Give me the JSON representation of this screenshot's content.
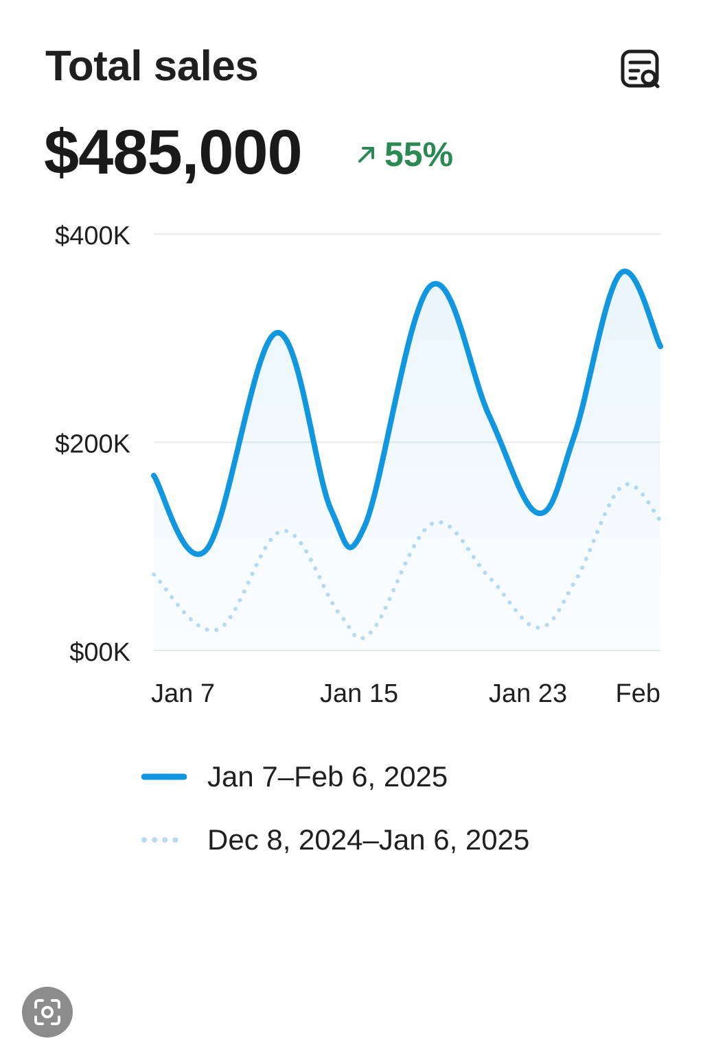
{
  "card": {
    "title": "Total sales",
    "total_value": "$485,000",
    "delta_text": "55%",
    "delta_direction": "up",
    "delta_color": "#2b8a53",
    "report_icon": "report-icon",
    "lens_icon": "lens-scan-icon"
  },
  "colors": {
    "current": "#1196e0",
    "previous": "#b9dcf2",
    "grid": "#e6e9ec"
  },
  "chart_data": {
    "type": "line",
    "x_ticks": [
      {
        "label": "Jan 7",
        "day": 0
      },
      {
        "label": "Jan 15",
        "day": 8
      },
      {
        "label": "Jan 23",
        "day": 16
      },
      {
        "label": "Feb",
        "day": 24
      }
    ],
    "y_ticks": [
      {
        "label": "$00K",
        "value": 0
      },
      {
        "label": "$200K",
        "value": 200000
      },
      {
        "label": "$400K",
        "value": 400000
      }
    ],
    "ylim": [
      0,
      410000
    ],
    "x_range": [
      0,
      24
    ],
    "grid": true,
    "legend": "bottom",
    "series": [
      {
        "name": "Jan 7–Feb 6, 2025",
        "style": "solid",
        "area_fill": true,
        "points": [
          {
            "x": 0,
            "y": 168000
          },
          {
            "x": 2.5,
            "y": 97000
          },
          {
            "x": 5.8,
            "y": 305000
          },
          {
            "x": 8.4,
            "y": 135000
          },
          {
            "x": 10.0,
            "y": 120000
          },
          {
            "x": 13.1,
            "y": 350000
          },
          {
            "x": 15.9,
            "y": 225000
          },
          {
            "x": 18.2,
            "y": 132000
          },
          {
            "x": 19.9,
            "y": 205000
          },
          {
            "x": 22.1,
            "y": 362000
          },
          {
            "x": 24,
            "y": 292000
          }
        ]
      },
      {
        "name": "Dec 8, 2024–Jan 6, 2025",
        "style": "dotted",
        "area_fill": false,
        "points": [
          {
            "x": 0,
            "y": 73000
          },
          {
            "x": 3.0,
            "y": 20000
          },
          {
            "x": 6.1,
            "y": 115000
          },
          {
            "x": 8.8,
            "y": 35000
          },
          {
            "x": 10.3,
            "y": 18000
          },
          {
            "x": 13.2,
            "y": 122000
          },
          {
            "x": 15.9,
            "y": 70000
          },
          {
            "x": 18.2,
            "y": 22000
          },
          {
            "x": 20.0,
            "y": 68000
          },
          {
            "x": 22.2,
            "y": 158000
          },
          {
            "x": 24,
            "y": 125000
          }
        ]
      }
    ]
  }
}
